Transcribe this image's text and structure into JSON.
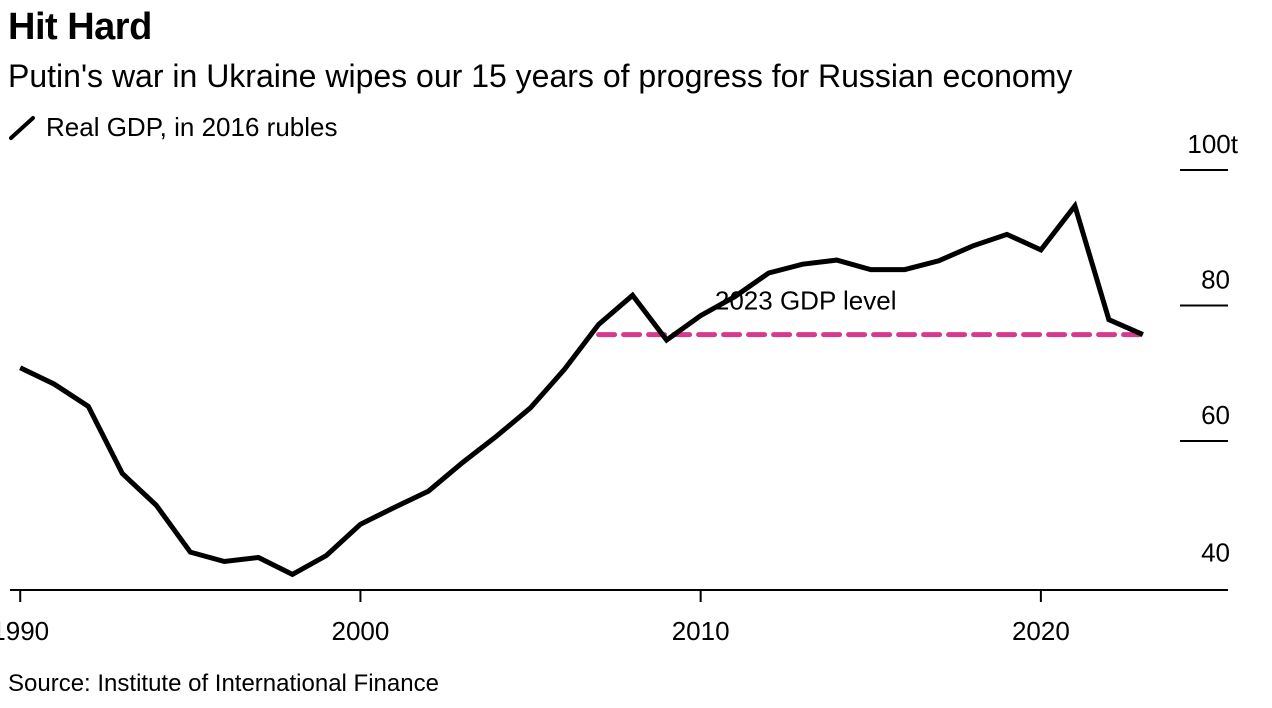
{
  "title": "Hit Hard",
  "subtitle": "Putin's war in Ukraine wipes our 15 years of progress for Russian economy",
  "legend": {
    "label": "Real GDP, in 2016 rubles",
    "icon": "line-swatch-icon"
  },
  "source": "Source: Institute of International Finance",
  "colors": {
    "series": "#000000",
    "reference": "#d63a8e",
    "axis": "#000000"
  },
  "chart_data": {
    "type": "line",
    "title": "Hit Hard",
    "subtitle": "Putin's war in Ukraine wipes our 15 years of progress for Russian economy",
    "xlabel": "",
    "ylabel": "Real GDP, in 2016 rubles",
    "xlim": [
      1989.7,
      2025.5
    ],
    "ylim": [
      38,
      100
    ],
    "x_ticks": [
      1990,
      2000,
      2010,
      2020
    ],
    "x_tick_labels": [
      "1990",
      "2000",
      "2010",
      "2020"
    ],
    "y_ticks": [
      40,
      60,
      80,
      100
    ],
    "y_tick_labels": [
      "40",
      "60",
      "80",
      "100t"
    ],
    "y_axis_side": "right",
    "grid": false,
    "series": [
      {
        "name": "Real GDP, in 2016 rubles",
        "x": [
          1990,
          1991,
          1992,
          1993,
          1994,
          1995,
          1996,
          1997,
          1998,
          1999,
          2000,
          2001,
          2002,
          2003,
          2004,
          2005,
          2006,
          2007,
          2008,
          2009,
          2010,
          2011,
          2012,
          2013,
          2014,
          2015,
          2016,
          2017,
          2018,
          2019,
          2020,
          2021,
          2022,
          2023
        ],
        "values": [
          70.8,
          68.4,
          65.1,
          55.2,
          50.5,
          43.6,
          42.2,
          42.8,
          40.3,
          43.1,
          47.7,
          50.2,
          52.6,
          56.8,
          60.7,
          64.9,
          70.6,
          77.2,
          81.5,
          74.9,
          78.5,
          81.3,
          84.8,
          86.1,
          86.7,
          85.3,
          85.3,
          86.6,
          88.8,
          90.5,
          88.2,
          94.7,
          77.9,
          75.7
        ]
      }
    ],
    "reference_line": {
      "label": "2023 GDP level",
      "value": 75.7,
      "x_start": 2007,
      "x_end": 2023,
      "style": "dashed"
    }
  }
}
